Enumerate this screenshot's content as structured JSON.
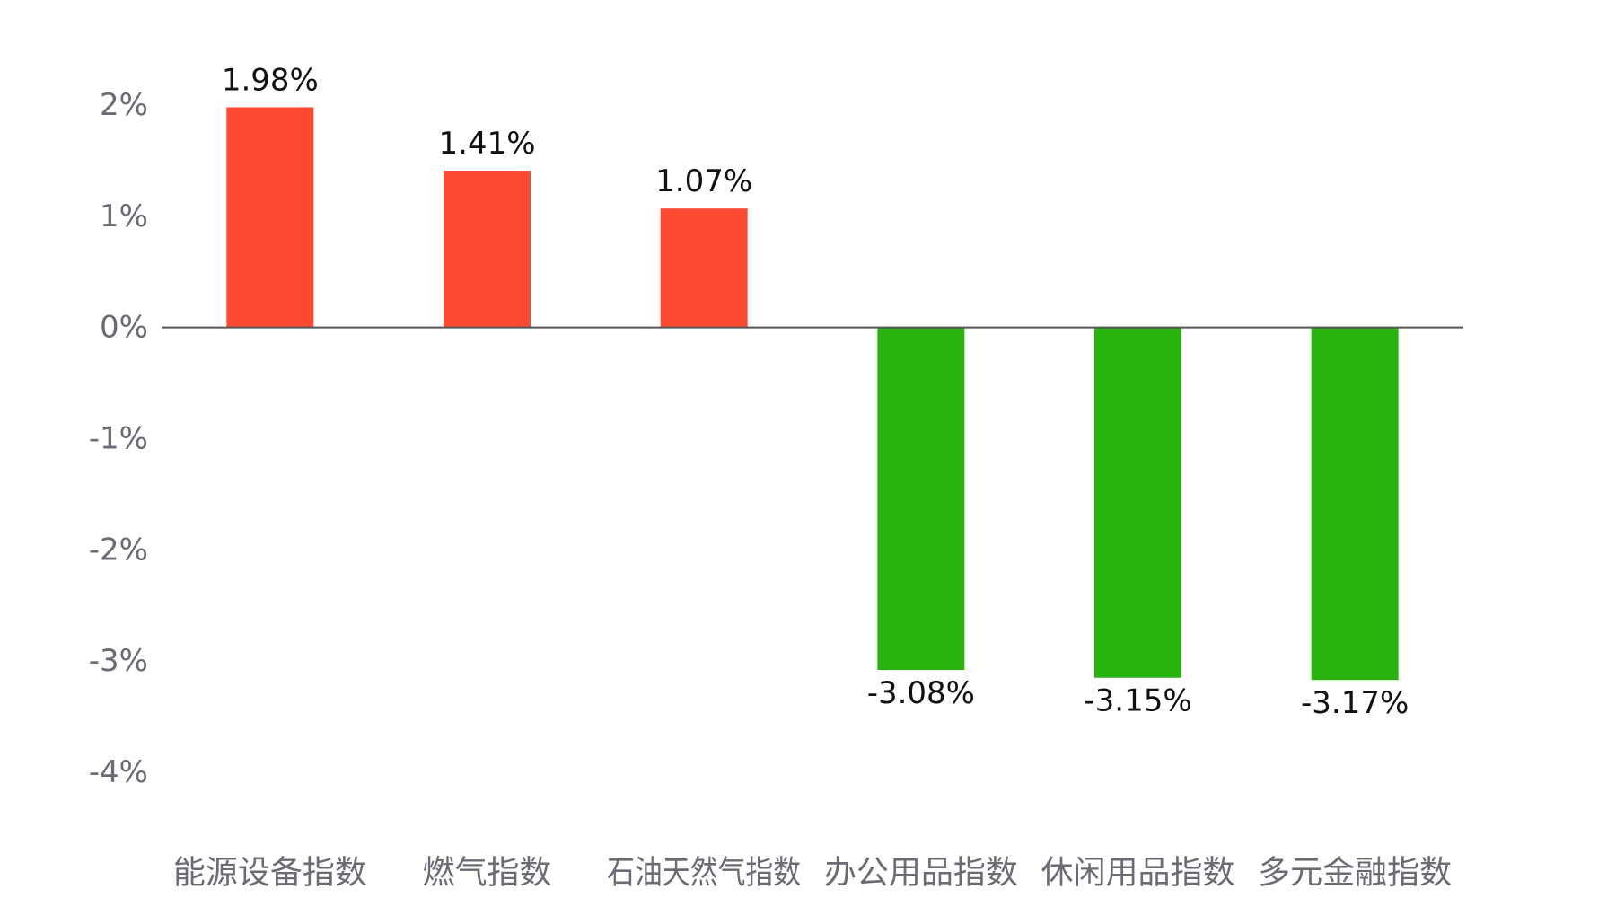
{
  "chart_data": {
    "type": "bar",
    "categories": [
      "能源设备指数",
      "燃气指数",
      "石油天然气指数",
      "办公用品指数",
      "休闲用品指数",
      "多元金融指数"
    ],
    "values": [
      1.98,
      1.41,
      1.07,
      -3.08,
      -3.15,
      -3.17
    ],
    "value_labels": [
      "1.98%",
      "1.41%",
      "1.07%",
      "-3.08%",
      "-3.15%",
      "-3.17%"
    ],
    "yticks": [
      2,
      1,
      0,
      -1,
      -2,
      -3,
      -4
    ],
    "ytick_labels": [
      "2%",
      "1%",
      "0%",
      "-1%",
      "-2%",
      "-3%",
      "-4%"
    ],
    "ylim": [
      -4,
      2
    ],
    "grid": false,
    "legend": "none",
    "colors": {
      "positive": "#ff4a33",
      "negative": "#28b30f",
      "axis": "#555555"
    }
  }
}
